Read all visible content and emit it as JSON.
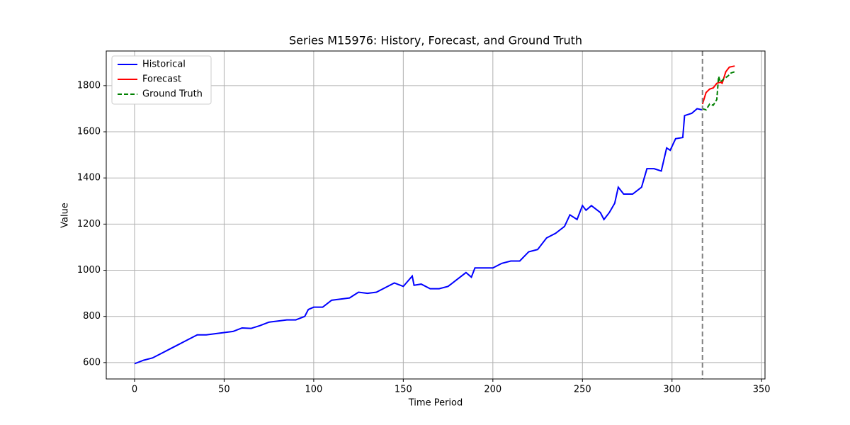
{
  "chart_data": {
    "type": "line",
    "title": "Series M15976: History, Forecast, and Ground Truth",
    "x_label": "Time Period",
    "y_label": "Value",
    "xlim": [
      -15.8,
      351.9
    ],
    "ylim": [
      529,
      1950
    ],
    "xticks": [
      0,
      50,
      100,
      150,
      200,
      250,
      300,
      350
    ],
    "yticks": [
      600,
      800,
      1000,
      1200,
      1400,
      1600,
      1800
    ],
    "grid": true,
    "legend": "upper-left",
    "vline_x": 317,
    "vline_color": "#808080",
    "series": [
      {
        "name": "Historical",
        "color": "#0000ff",
        "dash": false,
        "x": [
          0,
          5,
          10,
          15,
          20,
          25,
          30,
          35,
          40,
          45,
          50,
          55,
          60,
          65,
          70,
          75,
          80,
          85,
          90,
          95,
          97,
          100,
          105,
          110,
          115,
          120,
          125,
          130,
          135,
          140,
          145,
          150,
          155,
          156,
          160,
          165,
          170,
          175,
          180,
          185,
          188,
          190,
          195,
          200,
          205,
          210,
          215,
          220,
          225,
          230,
          235,
          240,
          243,
          247,
          250,
          252,
          255,
          260,
          262,
          265,
          268,
          270,
          273,
          278,
          283,
          286,
          290,
          294,
          297,
          299,
          302,
          306,
          307,
          311,
          314,
          317
        ],
        "values": [
          595,
          610,
          620,
          640,
          660,
          680,
          700,
          720,
          720,
          725,
          730,
          735,
          750,
          748,
          760,
          775,
          780,
          785,
          785,
          800,
          830,
          840,
          840,
          870,
          875,
          880,
          905,
          900,
          905,
          925,
          945,
          930,
          975,
          935,
          940,
          920,
          920,
          930,
          960,
          990,
          970,
          1010,
          1010,
          1010,
          1030,
          1040,
          1040,
          1080,
          1090,
          1140,
          1160,
          1190,
          1240,
          1220,
          1280,
          1260,
          1280,
          1250,
          1220,
          1250,
          1290,
          1360,
          1330,
          1330,
          1360,
          1440,
          1440,
          1430,
          1530,
          1520,
          1570,
          1575,
          1670,
          1680,
          1700,
          1695
        ]
      },
      {
        "name": "Forecast",
        "color": "#ff0000",
        "dash": false,
        "x": [
          317,
          319,
          321,
          323,
          325,
          327,
          328,
          330,
          332,
          335
        ],
        "values": [
          1720,
          1770,
          1785,
          1790,
          1810,
          1815,
          1810,
          1860,
          1880,
          1885
        ]
      },
      {
        "name": "Ground Truth",
        "color": "#008000",
        "dash": true,
        "x": [
          317,
          319,
          321,
          323,
          325,
          326,
          327,
          329,
          331,
          333,
          335
        ],
        "values": [
          1700,
          1695,
          1720,
          1715,
          1740,
          1840,
          1815,
          1830,
          1840,
          1855,
          1860
        ]
      }
    ]
  }
}
